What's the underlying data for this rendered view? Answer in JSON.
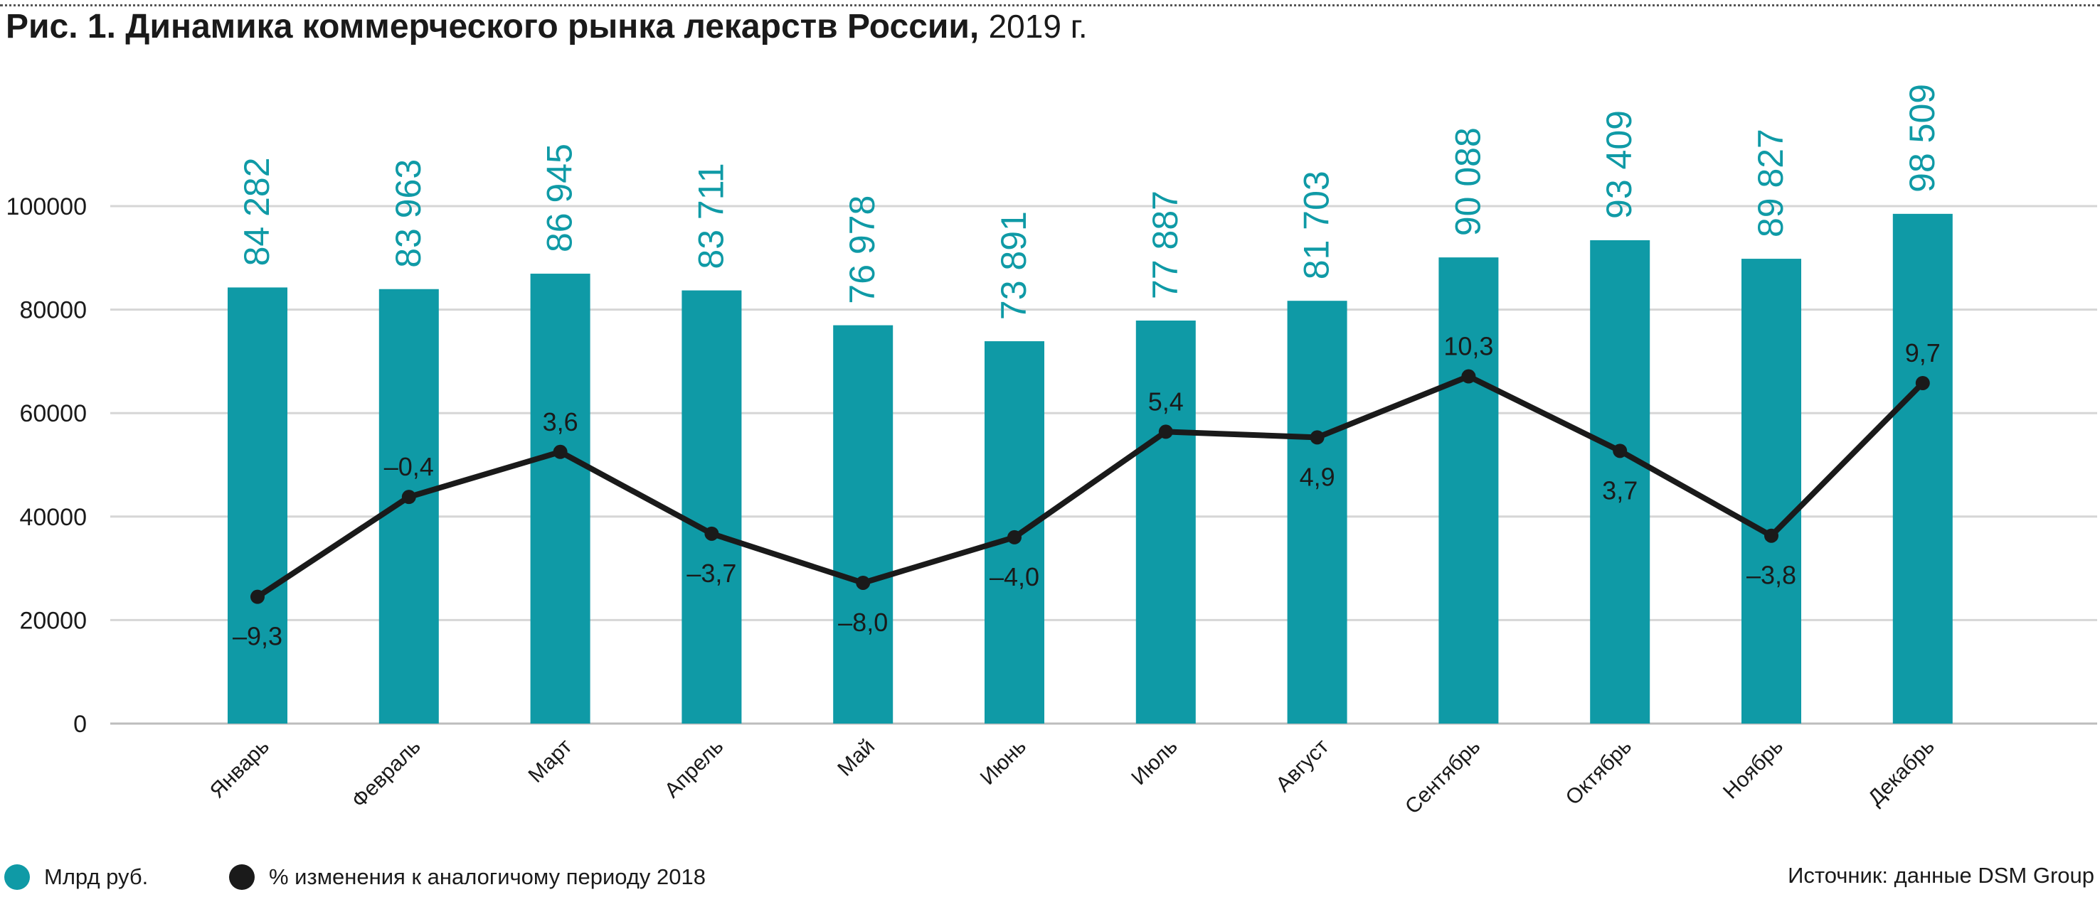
{
  "title": {
    "bold": "Рис. 1. Динамика коммерческого рынка лекарств России,",
    "year": "2019 г."
  },
  "colors": {
    "bar": "#0f9aa6",
    "line": "#1a1a1a",
    "grid": "#d6d6d6",
    "text": "#1a1a1a"
  },
  "legend": {
    "bars_label": "Млрд руб.",
    "line_label": "% изменения к аналогичому периоду 2018"
  },
  "source": "Источник: данные DSM Group",
  "chart_data": {
    "type": "bar",
    "categories": [
      "Январь",
      "Февраль",
      "Март",
      "Апрель",
      "Май",
      "Июнь",
      "Июль",
      "Август",
      "Сентябрь",
      "Октябрь",
      "Ноябрь",
      "Декабрь"
    ],
    "ylim": [
      0,
      100000
    ],
    "yticks": [
      0,
      20000,
      40000,
      60000,
      80000,
      100000
    ],
    "ytick_labels": [
      "0",
      "20000",
      "40000",
      "60000",
      "80000",
      "100000"
    ],
    "grid": true,
    "series": [
      {
        "name": "Млрд руб.",
        "type": "bar",
        "values": [
          84282,
          83963,
          86945,
          83711,
          76978,
          73891,
          77887,
          81703,
          90088,
          93409,
          89827,
          98509
        ],
        "labels": [
          "84 282",
          "83 963",
          "86 945",
          "83 711",
          "76 978",
          "73 891",
          "77 887",
          "81 703",
          "90 088",
          "93 409",
          "89 827",
          "98 509"
        ]
      },
      {
        "name": "% изменения к аналогичому периоду 2018",
        "type": "line",
        "values": [
          -9.3,
          -0.4,
          3.6,
          -3.7,
          -8.0,
          -4.0,
          5.4,
          4.9,
          10.3,
          3.7,
          -3.8,
          9.7
        ],
        "labels": [
          "–9,3",
          "–0,4",
          "3,6",
          "–3,7",
          "–8,0",
          "–4,0",
          "5,4",
          "4,9",
          "10,3",
          "3,7",
          "–3,8",
          "9,7"
        ],
        "label_position": [
          "below",
          "above",
          "above",
          "below",
          "below",
          "below",
          "above",
          "below",
          "above",
          "below",
          "below",
          "above"
        ],
        "plotted_on_left_axis_as": [
          24500,
          43800,
          52500,
          36700,
          27200,
          36000,
          56400,
          55300,
          67100,
          52700,
          36300,
          65800
        ]
      }
    ]
  }
}
